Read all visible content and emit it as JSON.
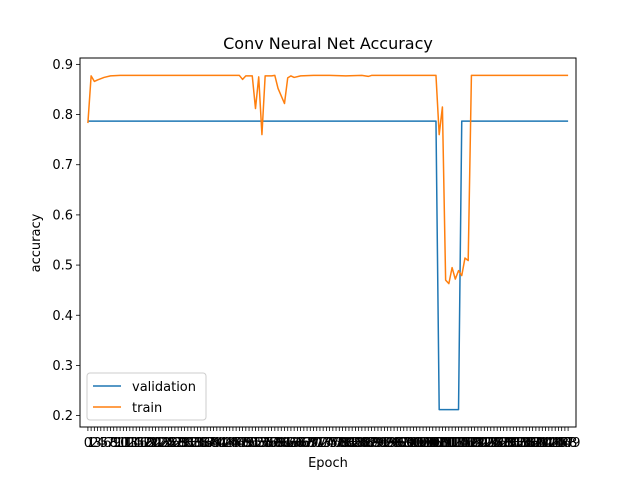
{
  "chart_data": {
    "type": "line",
    "title": "Conv Neural Net Accuracy",
    "xlabel": "Epoch",
    "ylabel": "accuracy",
    "xlim": [
      -2.45,
      151.45
    ],
    "ylim": [
      0.1773,
      0.9127
    ],
    "yticks": [
      "0.2",
      "0.3",
      "0.4",
      "0.5",
      "0.6",
      "0.7",
      "0.8",
      "0.9"
    ],
    "grid": false,
    "legend_position": "lower-left",
    "series": [
      {
        "name": "validation",
        "color": "#1f77b4",
        "points": [
          [
            0,
            0.787
          ],
          [
            108,
            0.787
          ],
          [
            109,
            0.212
          ],
          [
            115,
            0.212
          ],
          [
            116,
            0.787
          ],
          [
            149,
            0.787
          ]
        ]
      },
      {
        "name": "train",
        "color": "#ff7f0e",
        "points": [
          [
            0,
            0.783
          ],
          [
            1,
            0.877
          ],
          [
            2,
            0.866
          ],
          [
            3,
            0.869
          ],
          [
            5,
            0.874
          ],
          [
            7,
            0.877
          ],
          [
            10,
            0.878
          ],
          [
            20,
            0.878
          ],
          [
            35,
            0.878
          ],
          [
            47,
            0.878
          ],
          [
            48,
            0.87
          ],
          [
            49,
            0.877
          ],
          [
            51,
            0.877
          ],
          [
            52,
            0.812
          ],
          [
            53,
            0.875
          ],
          [
            54,
            0.76
          ],
          [
            55,
            0.877
          ],
          [
            57,
            0.877
          ],
          [
            58,
            0.878
          ],
          [
            59,
            0.852
          ],
          [
            61,
            0.822
          ],
          [
            62,
            0.873
          ],
          [
            63,
            0.877
          ],
          [
            64,
            0.874
          ],
          [
            66,
            0.877
          ],
          [
            70,
            0.878
          ],
          [
            75,
            0.878
          ],
          [
            80,
            0.877
          ],
          [
            85,
            0.878
          ],
          [
            87,
            0.876
          ],
          [
            88,
            0.878
          ],
          [
            95,
            0.878
          ],
          [
            108,
            0.878
          ],
          [
            109,
            0.76
          ],
          [
            110,
            0.815
          ],
          [
            111,
            0.47
          ],
          [
            112,
            0.463
          ],
          [
            113,
            0.495
          ],
          [
            114,
            0.472
          ],
          [
            115,
            0.489
          ],
          [
            116,
            0.479
          ],
          [
            117,
            0.514
          ],
          [
            118,
            0.509
          ],
          [
            119,
            0.878
          ],
          [
            130,
            0.878
          ],
          [
            149,
            0.878
          ]
        ]
      }
    ]
  }
}
